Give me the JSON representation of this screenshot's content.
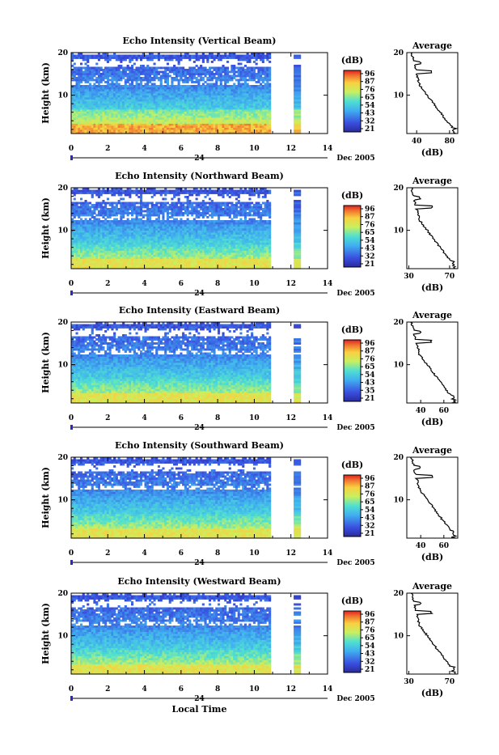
{
  "chart_data": [
    {
      "type": "heatmap",
      "title": "Echo Intensity (Vertical Beam)",
      "ylabel": "Height (km)",
      "xticks": [
        "0",
        "2",
        "4",
        "6",
        "8",
        "10",
        "12",
        "14"
      ],
      "yticks": [
        "10",
        "20"
      ],
      "xlim": [
        0,
        14
      ],
      "ylim": [
        1,
        20
      ],
      "date_label": "24",
      "month_label": "Dec 2005",
      "colorbar": {
        "unit": "(dB)",
        "ticks": [
          "96",
          "87",
          "76",
          "65",
          "54",
          "43",
          "32",
          "21"
        ]
      },
      "profile": {
        "title": "Average",
        "xlabel": "(dB)",
        "xticks": [
          "40",
          "80"
        ],
        "yticks": [
          "10",
          "20"
        ],
        "xlim": [
          28,
          90
        ]
      }
    },
    {
      "type": "heatmap",
      "title": "Echo Intensity (Northward Beam)",
      "ylabel": "Height (km)",
      "xticks": [
        "0",
        "2",
        "4",
        "6",
        "8",
        "10",
        "12",
        "14"
      ],
      "yticks": [
        "10",
        "20"
      ],
      "xlim": [
        0,
        14
      ],
      "ylim": [
        1,
        20
      ],
      "date_label": "24",
      "month_label": "Dec 2005",
      "colorbar": {
        "unit": "(dB)",
        "ticks": [
          "96",
          "87",
          "76",
          "65",
          "54",
          "43",
          "32",
          "21"
        ]
      },
      "profile": {
        "title": "Average",
        "xlabel": "(dB)",
        "xticks": [
          "30",
          "70"
        ],
        "yticks": [
          "10",
          "20"
        ],
        "xlim": [
          28,
          78
        ]
      }
    },
    {
      "type": "heatmap",
      "title": "Echo Intensity (Eastward Beam)",
      "ylabel": "Height (km)",
      "xticks": [
        "0",
        "2",
        "4",
        "6",
        "8",
        "10",
        "12",
        "14"
      ],
      "yticks": [
        "10",
        "20"
      ],
      "xlim": [
        0,
        14
      ],
      "ylim": [
        1,
        20
      ],
      "date_label": "24",
      "month_label": "Dec 2005",
      "colorbar": {
        "unit": "(dB)",
        "ticks": [
          "96",
          "87",
          "76",
          "65",
          "54",
          "43",
          "35",
          "21"
        ]
      },
      "profile": {
        "title": "Average",
        "xlabel": "(dB)",
        "xticks": [
          "40",
          "60"
        ],
        "yticks": [
          "10",
          "20"
        ],
        "xlim": [
          28,
          72
        ]
      }
    },
    {
      "type": "heatmap",
      "title": "Echo Intensity (Southward Beam)",
      "ylabel": "Height (km)",
      "xticks": [
        "0",
        "2",
        "4",
        "6",
        "8",
        "10",
        "12",
        "14"
      ],
      "yticks": [
        "10",
        "20"
      ],
      "xlim": [
        0,
        14
      ],
      "ylim": [
        1,
        20
      ],
      "date_label": "24",
      "month_label": "Dec 2005",
      "colorbar": {
        "unit": "(dB)",
        "ticks": [
          "96",
          "87",
          "76",
          "65",
          "54",
          "43",
          "32",
          "21"
        ]
      },
      "profile": {
        "title": "Average",
        "xlabel": "(dB)",
        "xticks": [
          "40",
          "60"
        ],
        "yticks": [
          "10",
          "20"
        ],
        "xlim": [
          28,
          72
        ]
      }
    },
    {
      "type": "heatmap",
      "title": "Echo Intensity (Westward Beam)",
      "ylabel": "Height (km)",
      "xticks": [
        "0",
        "2",
        "4",
        "6",
        "8",
        "10",
        "12",
        "14"
      ],
      "yticks": [
        "10",
        "20"
      ],
      "xlim": [
        0,
        14
      ],
      "ylim": [
        1,
        20
      ],
      "date_label": "24",
      "month_label": "Dec 2005",
      "xlabel": "Local Time",
      "colorbar": {
        "unit": "(dB)",
        "ticks": [
          "96",
          "87",
          "76",
          "65",
          "54",
          "43",
          "32",
          "21"
        ]
      },
      "profile": {
        "title": "Average",
        "xlabel": "(dB)",
        "xticks": [
          "30",
          "70"
        ],
        "yticks": [
          "10",
          "20"
        ],
        "xlim": [
          28,
          78
        ]
      }
    }
  ]
}
